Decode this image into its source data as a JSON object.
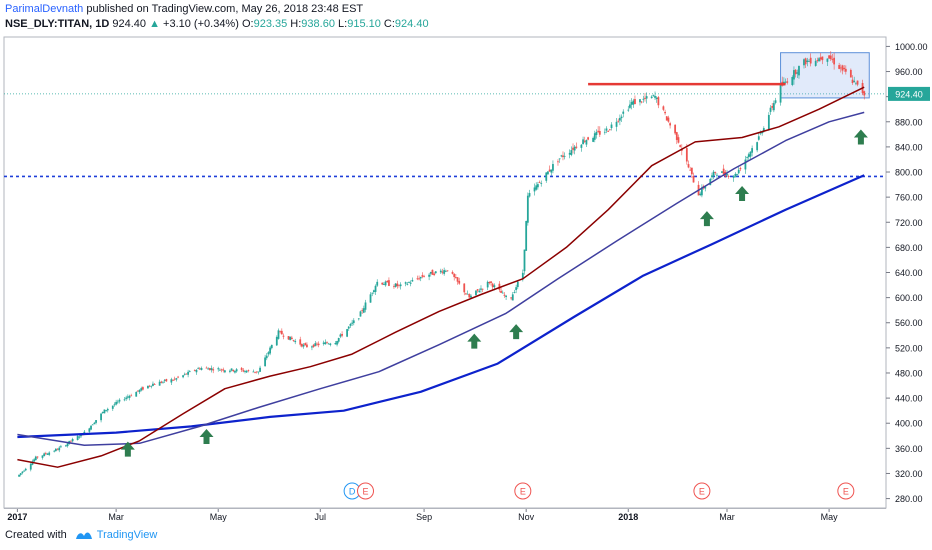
{
  "header": {
    "author": "ParimalDevnath",
    "published_text": "published on TradingView.com, May 26, 2018 23:48 EST",
    "symbol": "NSE_DLY:TITAN, 1D",
    "last": "924.40",
    "change": "+3.10 (+0.34%)",
    "open_label": "O:",
    "open": "923.35",
    "high_label": "H:",
    "high": "938.60",
    "low_label": "L:",
    "low": "915.10",
    "close_label": "C:",
    "close": "924.40"
  },
  "footer": {
    "created_with": "Created with",
    "brand": "TradingView"
  },
  "colors": {
    "up": "#26a69a",
    "down": "#ef5350",
    "ma_short": "#8b0000",
    "ma_mid": "#3f3f9f",
    "ma_long": "#0d22cc",
    "resistance": "#e53935",
    "support": "#1e3fd9",
    "arrow": "#2e7d4f",
    "box": "#5b8fd9",
    "box_fill": "rgba(120,160,230,0.22)"
  },
  "chart_data": {
    "type": "candlestick",
    "y_axis_ticks": [
      "1000.00",
      "960.00",
      "920.00",
      "880.00",
      "840.00",
      "800.00",
      "760.00",
      "720.00",
      "680.00",
      "640.00",
      "600.00",
      "560.00",
      "520.00",
      "480.00",
      "440.00",
      "400.00",
      "360.00",
      "320.00",
      "280.00"
    ],
    "x_axis_labels": [
      "2017",
      "Mar",
      "May",
      "Jul",
      "Sep",
      "Nov",
      "2018",
      "Mar",
      "May"
    ],
    "ylim": [
      265,
      1015
    ],
    "last_price_label": "924.40",
    "price_path": [
      [
        "2017-01-01",
        315
      ],
      [
        "2017-01-12",
        345
      ],
      [
        "2017-01-26",
        360
      ],
      [
        "2017-02-10",
        385
      ],
      [
        "2017-02-22",
        420
      ],
      [
        "2017-03-06",
        440
      ],
      [
        "2017-03-22",
        462
      ],
      [
        "2017-04-05",
        470
      ],
      [
        "2017-04-20",
        488
      ],
      [
        "2017-05-08",
        485
      ],
      [
        "2017-05-25",
        482
      ],
      [
        "2017-06-06",
        545
      ],
      [
        "2017-06-22",
        522
      ],
      [
        "2017-07-10",
        530
      ],
      [
        "2017-07-24",
        570
      ],
      [
        "2017-08-04",
        625
      ],
      [
        "2017-08-18",
        618
      ],
      [
        "2017-09-01",
        635
      ],
      [
        "2017-09-15",
        645
      ],
      [
        "2017-09-28",
        600
      ],
      [
        "2017-10-10",
        625
      ],
      [
        "2017-10-22",
        595
      ],
      [
        "2017-10-30",
        640
      ],
      [
        "2017-11-02",
        760
      ],
      [
        "2017-11-20",
        820
      ],
      [
        "2017-12-05",
        850
      ],
      [
        "2017-12-20",
        868
      ],
      [
        "2018-01-03",
        910
      ],
      [
        "2018-01-17",
        920
      ],
      [
        "2018-01-31",
        850
      ],
      [
        "2018-02-12",
        765
      ],
      [
        "2018-02-22",
        800
      ],
      [
        "2018-03-06",
        795
      ],
      [
        "2018-03-20",
        855
      ],
      [
        "2018-04-02",
        935
      ],
      [
        "2018-04-16",
        975
      ],
      [
        "2018-04-30",
        985
      ],
      [
        "2018-05-10",
        960
      ],
      [
        "2018-05-22",
        924.4
      ]
    ],
    "ma_short": [
      [
        "2017-01-01",
        342
      ],
      [
        "2017-01-25",
        330
      ],
      [
        "2017-02-20",
        348
      ],
      [
        "2017-03-15",
        372
      ],
      [
        "2017-04-10",
        415
      ],
      [
        "2017-05-05",
        455
      ],
      [
        "2017-06-01",
        475
      ],
      [
        "2017-06-25",
        490
      ],
      [
        "2017-07-20",
        510
      ],
      [
        "2017-08-15",
        545
      ],
      [
        "2017-09-10",
        578
      ],
      [
        "2017-10-05",
        605
      ],
      [
        "2017-10-30",
        630
      ],
      [
        "2017-11-25",
        680
      ],
      [
        "2017-12-20",
        740
      ],
      [
        "2018-01-15",
        810
      ],
      [
        "2018-02-10",
        848
      ],
      [
        "2018-03-10",
        855
      ],
      [
        "2018-04-01",
        872
      ],
      [
        "2018-04-25",
        900
      ],
      [
        "2018-05-22",
        935
      ]
    ],
    "ma_mid": [
      [
        "2017-01-01",
        382
      ],
      [
        "2017-02-10",
        365
      ],
      [
        "2017-03-15",
        368
      ],
      [
        "2017-04-20",
        395
      ],
      [
        "2017-05-25",
        425
      ],
      [
        "2017-07-01",
        455
      ],
      [
        "2017-08-05",
        482
      ],
      [
        "2017-09-10",
        525
      ],
      [
        "2017-10-20",
        575
      ],
      [
        "2017-11-20",
        630
      ],
      [
        "2017-12-25",
        690
      ],
      [
        "2018-01-30",
        750
      ],
      [
        "2018-03-05",
        805
      ],
      [
        "2018-04-05",
        850
      ],
      [
        "2018-05-01",
        880
      ],
      [
        "2018-05-22",
        895
      ]
    ],
    "ma_long": [
      [
        "2017-01-01",
        378
      ],
      [
        "2017-03-01",
        385
      ],
      [
        "2017-04-15",
        395
      ],
      [
        "2017-06-01",
        410
      ],
      [
        "2017-07-15",
        420
      ],
      [
        "2017-08-30",
        450
      ],
      [
        "2017-10-15",
        495
      ],
      [
        "2017-11-30",
        570
      ],
      [
        "2018-01-10",
        635
      ],
      [
        "2018-02-20",
        685
      ],
      [
        "2018-04-05",
        740
      ],
      [
        "2018-05-22",
        795
      ]
    ],
    "support_level": 793,
    "resistance": {
      "from": "2017-12-08",
      "to": "2018-04-05",
      "price": 940
    },
    "consolidation_box": {
      "from": "2018-04-02",
      "to": "2018-05-25",
      "top": 990,
      "bottom": 918
    },
    "arrows": [
      [
        "2017-03-08",
        358
      ],
      [
        "2017-04-24",
        378
      ],
      [
        "2017-10-01",
        530
      ],
      [
        "2017-10-26",
        545
      ],
      [
        "2018-02-17",
        725
      ],
      [
        "2018-03-10",
        765
      ],
      [
        "2018-05-20",
        855
      ]
    ],
    "events": [
      {
        "label": "D",
        "date": "2017-07-20"
      },
      {
        "label": "E",
        "date": "2017-07-28"
      },
      {
        "label": "E",
        "date": "2017-10-30"
      },
      {
        "label": "E",
        "date": "2018-02-14"
      },
      {
        "label": "E",
        "date": "2018-05-11"
      }
    ]
  }
}
